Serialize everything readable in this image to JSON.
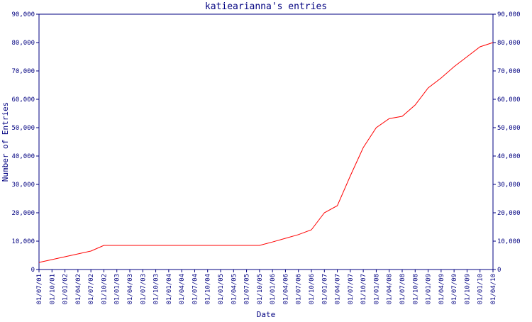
{
  "chart_data": {
    "type": "line",
    "title": "katiearianna's entries",
    "x_label": "Date",
    "y_label": "Number of Entries",
    "categories": [
      "01/07/01",
      "01/10/01",
      "01/01/02",
      "01/04/02",
      "01/07/02",
      "01/10/02",
      "01/01/03",
      "01/04/03",
      "01/07/03",
      "01/10/03",
      "01/01/04",
      "01/04/04",
      "01/07/04",
      "01/10/04",
      "01/01/05",
      "01/04/05",
      "01/07/05",
      "01/10/05",
      "01/01/06",
      "01/04/06",
      "01/07/06",
      "01/10/06",
      "01/01/07",
      "01/04/07",
      "01/07/07",
      "01/10/07",
      "01/01/08",
      "01/04/08",
      "01/07/08",
      "01/10/08",
      "01/01/09",
      "01/04/09",
      "01/07/09",
      "01/10/09",
      "01/01/10",
      "01/04/10"
    ],
    "series": [
      {
        "name": "Entries",
        "color": "#ff0000",
        "values": [
          2500,
          3500,
          4500,
          5500,
          6500,
          8500,
          8500,
          8500,
          8500,
          8500,
          8500,
          8500,
          8500,
          8500,
          8500,
          8500,
          8500,
          8500,
          9700,
          11000,
          12300,
          14000,
          20000,
          22500,
          33000,
          43000,
          50000,
          53200,
          54000,
          58000,
          64000,
          67500,
          71500,
          75000,
          78500,
          80000
        ]
      }
    ],
    "ylim": [
      0,
      90000
    ],
    "yticks": [
      0,
      {
        "value": 10000,
        "label": "10,000"
      },
      {
        "value": 20000,
        "label": "20,000"
      },
      {
        "value": 30000,
        "label": "30,000"
      },
      {
        "value": 40000,
        "label": "40,000"
      },
      {
        "value": 50000,
        "label": "50,000"
      },
      {
        "value": 60000,
        "label": "60,000"
      },
      {
        "value": 70000,
        "label": "70,000"
      },
      {
        "value": 80000,
        "label": "80,000"
      },
      {
        "value": 90000,
        "label": "90,000"
      }
    ],
    "axis_color": "#000080",
    "grid": false
  }
}
